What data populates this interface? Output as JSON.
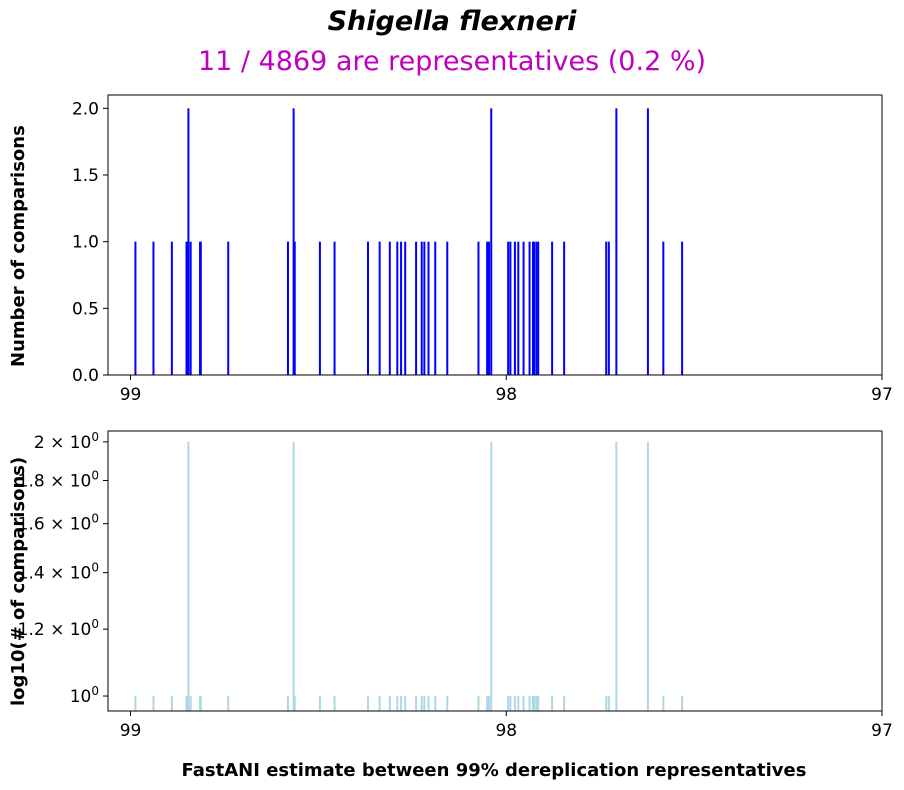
{
  "title": "Shigella flexneri",
  "subtitle": "11 / 4869 are representatives (0.2 %)",
  "chart_data": [
    {
      "type": "bar",
      "color": "#0000ff",
      "xlabel": "FastANI estimate between 99% dereplication representatives",
      "ylabel": "Number of comparisons",
      "xlim": [
        99.06,
        97.0
      ],
      "ylim": [
        0,
        2.1
      ],
      "x_ticks": [
        "99",
        "98",
        "97"
      ],
      "y_ticks": [
        "0.0",
        "0.5",
        "1.0",
        "1.5",
        "2.0"
      ],
      "x": [
        98.987,
        98.939,
        98.89,
        98.851,
        98.846,
        98.84,
        98.813,
        98.815,
        98.74,
        98.581,
        98.566,
        98.563,
        98.496,
        98.457,
        98.368,
        98.337,
        98.31,
        98.29,
        98.28,
        98.269,
        98.24,
        98.225,
        98.218,
        98.207,
        98.189,
        98.157,
        98.074,
        98.051,
        98.046,
        98.04,
        97.995,
        97.989,
        97.977,
        97.968,
        97.954,
        97.938,
        97.929,
        97.926,
        97.92,
        97.915,
        97.878,
        97.846,
        97.734,
        97.727,
        97.707,
        97.623,
        97.582,
        97.532
      ],
      "values": [
        1,
        1,
        1,
        1,
        2,
        1,
        1,
        1,
        1,
        1,
        2,
        1,
        1,
        1,
        1,
        1,
        1,
        1,
        1,
        1,
        1,
        1,
        1,
        1,
        1,
        1,
        1,
        1,
        1,
        2,
        1,
        1,
        1,
        1,
        1,
        1,
        1,
        1,
        1,
        1,
        1,
        1,
        1,
        1,
        2,
        2,
        1,
        1
      ]
    },
    {
      "type": "bar",
      "color": "#add8e6",
      "xlabel": "FastANI estimate between 99% dereplication representatives",
      "ylabel": "log10(# of comparisons)",
      "yscale": "log",
      "xlim": [
        99.06,
        97.0
      ],
      "ylim": [
        0.96,
        2.06
      ],
      "x_ticks": [
        "99",
        "98",
        "97"
      ],
      "y_ticks": [
        "10^0",
        "1.2 × 10^0",
        "1.4 × 10^0",
        "1.6 × 10^0",
        "1.8 × 10^0",
        "2 × 10^0"
      ],
      "same_data_as_top": true
    }
  ]
}
